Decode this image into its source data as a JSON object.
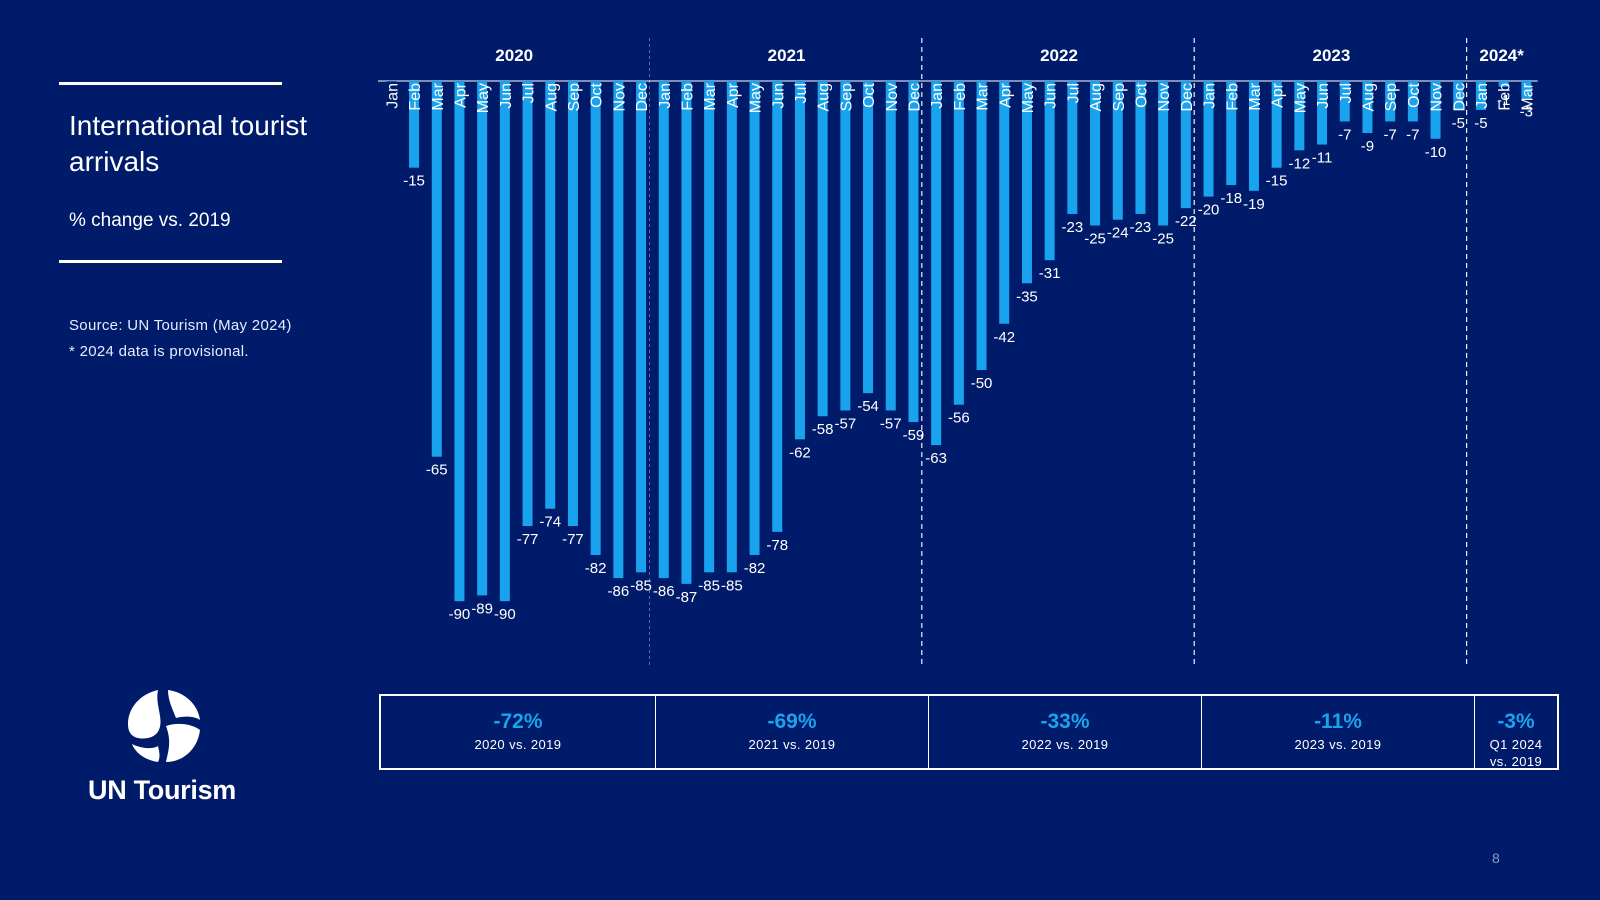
{
  "title": "International tourist arrivals",
  "subtitle": "% change vs. 2019",
  "source": "Source: UN Tourism (May 2024)",
  "footnote": "* 2024 data is provisional.",
  "logo_text": "UN Tourism",
  "page_number": "8",
  "colors": {
    "background": "#001b69",
    "bar": "#19a3ef",
    "summary_value": "#19a3ef",
    "text": "#ffffff"
  },
  "summary": [
    {
      "value": "-72%",
      "label": "2020 vs. 2019"
    },
    {
      "value": "-69%",
      "label": "2021 vs. 2019"
    },
    {
      "value": "-33%",
      "label": "2022 vs. 2019"
    },
    {
      "value": "-11%",
      "label": "2023 vs. 2019"
    },
    {
      "value": "-3%",
      "label": "Q1 2024 vs. 2019"
    }
  ],
  "chart_data": {
    "type": "bar",
    "title": "International tourist arrivals",
    "ylabel": "% change vs. 2019",
    "ylim": [
      -100,
      0
    ],
    "grid": false,
    "legend": "none",
    "year_groups": [
      {
        "label": "2020",
        "months": 12
      },
      {
        "label": "2021",
        "months": 12
      },
      {
        "label": "2022",
        "months": 12
      },
      {
        "label": "2023",
        "months": 12
      },
      {
        "label": "2024*",
        "months": 3
      }
    ],
    "categories": [
      "Jan",
      "Feb",
      "Mar",
      "Apr",
      "May",
      "Jun",
      "Jul",
      "Aug",
      "Sep",
      "Oct",
      "Nov",
      "Dec",
      "Jan",
      "Feb",
      "Mar",
      "Apr",
      "May",
      "Jun",
      "Jul",
      "Aug",
      "Sep",
      "Oct",
      "Nov",
      "Dec",
      "Jan",
      "Feb",
      "Mar",
      "Apr",
      "May",
      "Jun",
      "Jul",
      "Aug",
      "Sep",
      "Oct",
      "Nov",
      "Dec",
      "Jan",
      "Feb",
      "Mar",
      "Apr",
      "May",
      "Jun",
      "Jul",
      "Aug",
      "Sep",
      "Oct",
      "Nov",
      "Dec",
      "Jan",
      "Feb",
      "Mar"
    ],
    "values": [
      0,
      -15,
      -65,
      -90,
      -89,
      -90,
      -77,
      -74,
      -77,
      -82,
      -86,
      -85,
      -86,
      -87,
      -85,
      -85,
      -82,
      -78,
      -62,
      -58,
      -57,
      -54,
      -57,
      -59,
      -63,
      -56,
      -50,
      -42,
      -35,
      -31,
      -23,
      -25,
      -24,
      -23,
      -25,
      -22,
      -20,
      -18,
      -19,
      -15,
      -12,
      -11,
      -7,
      -9,
      -7,
      -7,
      -10,
      -5,
      -5,
      -1,
      -3
    ],
    "data_labels": [
      "",
      "-15",
      "-65",
      "-90",
      "-89",
      "-90",
      "-77",
      "-74",
      "-77",
      "-82",
      "-86",
      "-85",
      "-86",
      "-87",
      "-85",
      "-85",
      "-82",
      "-78",
      "-62",
      "-58",
      "-57",
      "-54",
      "-57",
      "-59",
      "-63",
      "-56",
      "-50",
      "-42",
      "-35",
      "-31",
      "-23",
      "-25",
      "-24",
      "-23",
      "-25",
      "-22",
      "-20",
      "-18",
      "-19",
      "-15",
      "-12",
      "-11",
      "-7",
      "-9",
      "-7",
      "-7",
      "-10",
      "-5",
      "-5",
      "-1",
      "-3"
    ]
  }
}
